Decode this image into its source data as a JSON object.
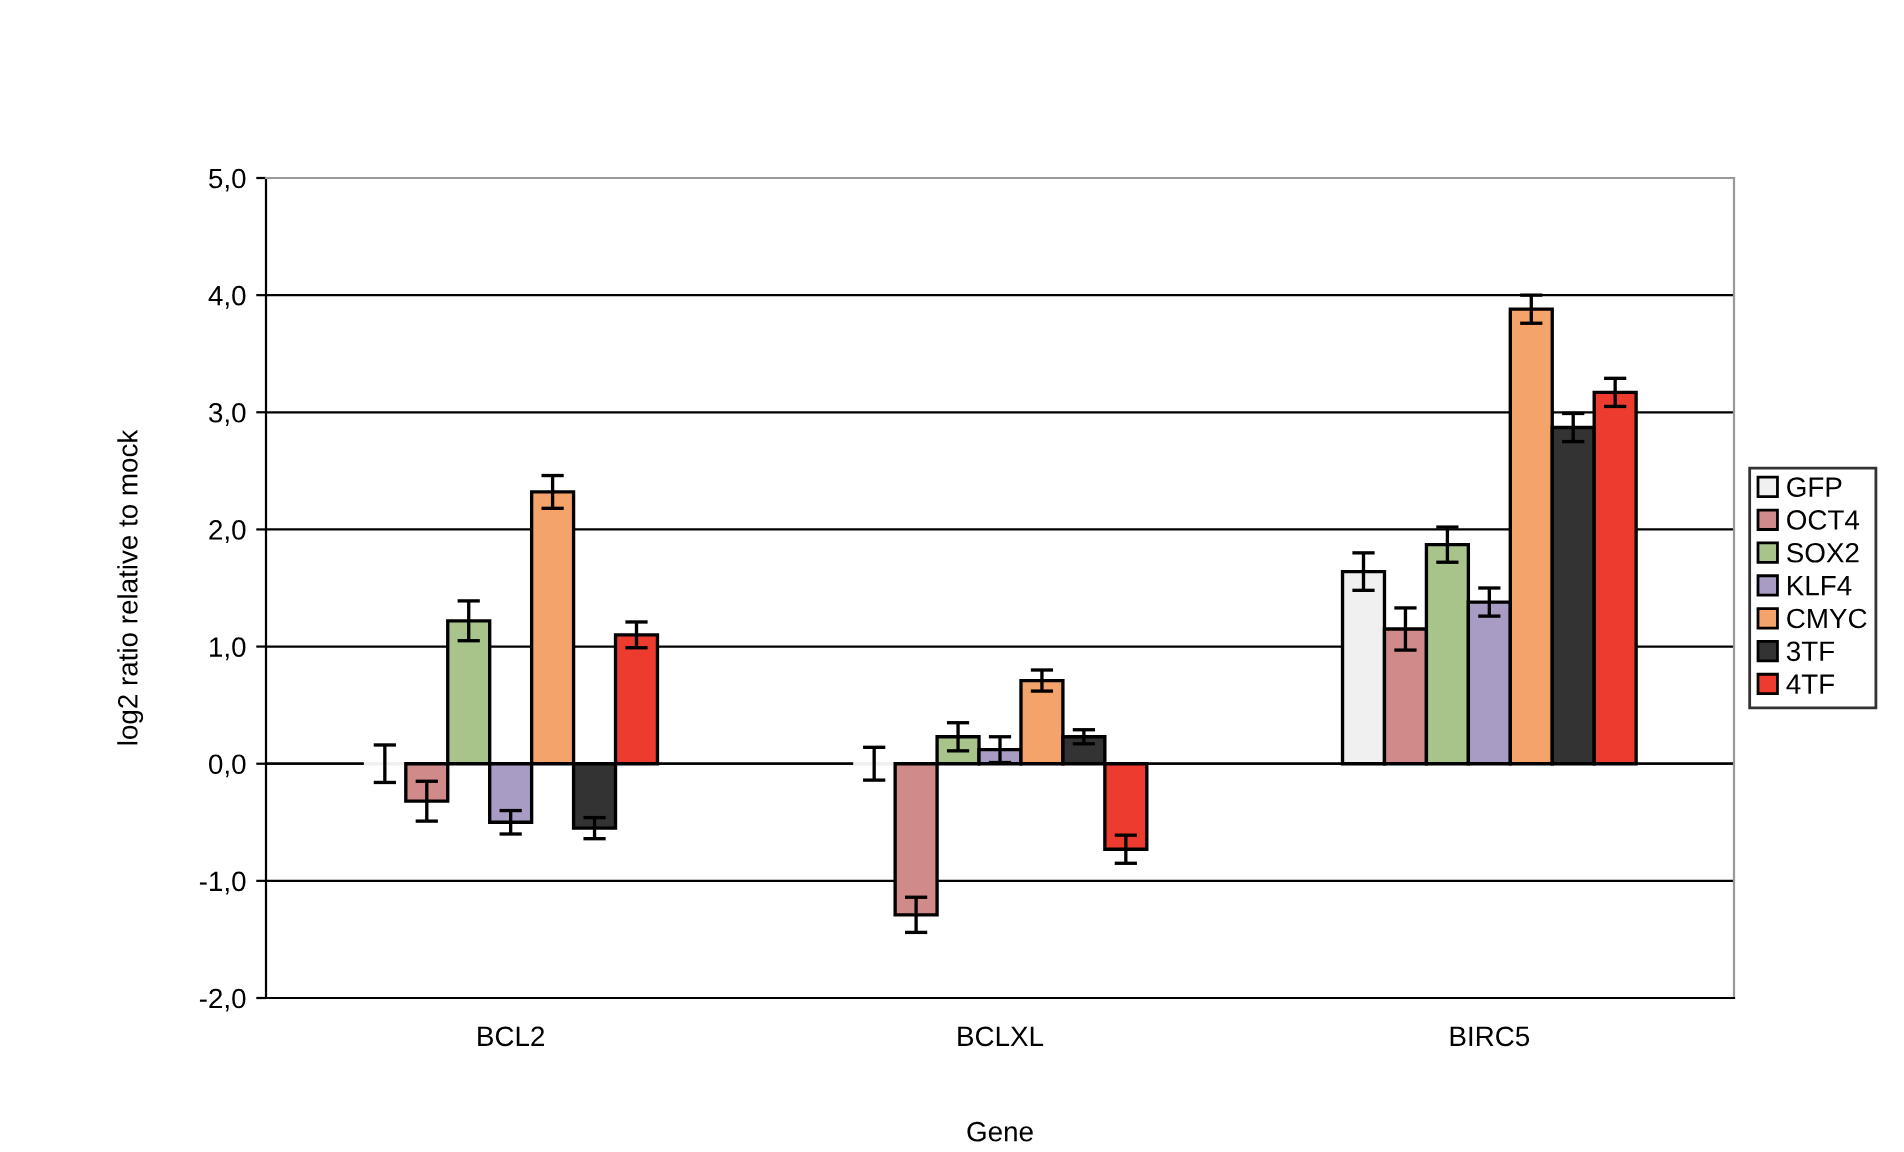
{
  "chart_data": {
    "type": "bar",
    "xlabel": "Gene",
    "ylabel": "log2 ratio relative to mock",
    "categories": [
      "BCL2",
      "BCLXL",
      "BIRC5"
    ],
    "series": [
      {
        "name": "GFP",
        "color": "#f0f0f0",
        "values": [
          0.0,
          0.0,
          1.64
        ],
        "errors": [
          0.16,
          0.14,
          0.16
        ]
      },
      {
        "name": "OCT4",
        "color": "#d08a8a",
        "values": [
          -0.32,
          -1.29,
          1.15
        ],
        "errors": [
          0.17,
          0.15,
          0.18
        ]
      },
      {
        "name": "SOX2",
        "color": "#a9c48a",
        "values": [
          1.22,
          0.23,
          1.87
        ],
        "errors": [
          0.17,
          0.12,
          0.15
        ]
      },
      {
        "name": "KLF4",
        "color": "#a99cc4",
        "values": [
          -0.5,
          0.12,
          1.38
        ],
        "errors": [
          0.1,
          0.11,
          0.12
        ]
      },
      {
        "name": "CMYC",
        "color": "#f4a46a",
        "values": [
          2.32,
          0.71,
          3.88
        ],
        "errors": [
          0.14,
          0.09,
          0.12
        ]
      },
      {
        "name": "3TF",
        "color": "#333333",
        "values": [
          -0.55,
          0.23,
          2.87
        ],
        "errors": [
          0.09,
          0.06,
          0.12
        ]
      },
      {
        "name": "4TF",
        "color": "#ee3b2f",
        "values": [
          1.1,
          -0.73,
          3.17
        ],
        "errors": [
          0.11,
          0.12,
          0.12
        ]
      }
    ],
    "ylim": [
      -2,
      5
    ],
    "yticks": [
      {
        "value": -2,
        "label": "-2,0"
      },
      {
        "value": -1,
        "label": "-1,0"
      },
      {
        "value": 0,
        "label": "0,0"
      },
      {
        "value": 1,
        "label": "1,0"
      },
      {
        "value": 2,
        "label": "2,0"
      },
      {
        "value": 3,
        "label": "3,0"
      },
      {
        "value": 4,
        "label": "4,0"
      },
      {
        "value": 5,
        "label": "5,0"
      }
    ],
    "grid": "y",
    "legend": "right"
  }
}
